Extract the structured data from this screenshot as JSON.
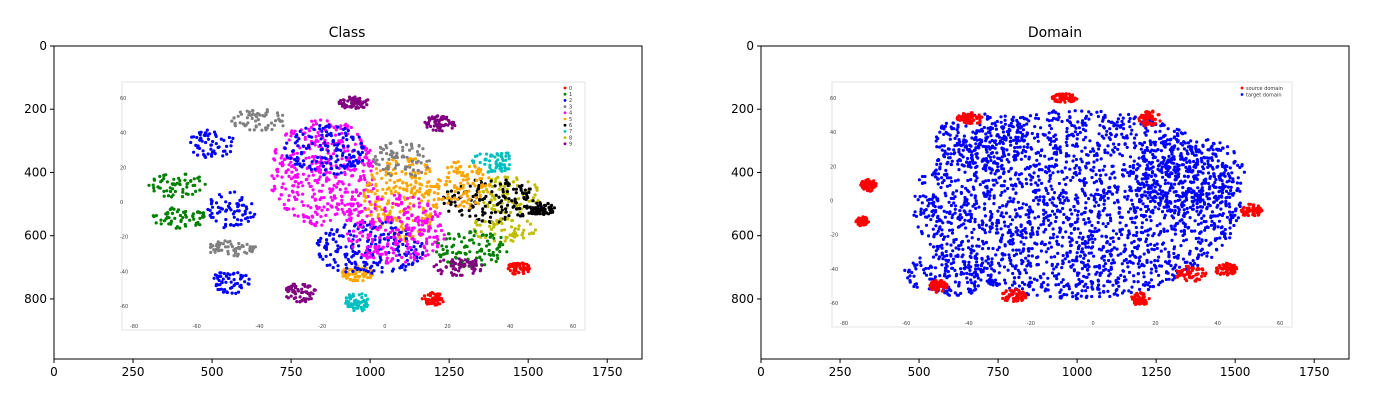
{
  "chart_data": [
    {
      "type": "scatter",
      "title": "Class",
      "xlim": [
        0,
        1860
      ],
      "ylim": [
        990,
        0
      ],
      "xticks": [
        "0",
        "250",
        "500",
        "750",
        "1000",
        "1250",
        "1500",
        "1750"
      ],
      "xtick_values": [
        0,
        250,
        500,
        750,
        1000,
        1250,
        1500,
        1750
      ],
      "yticks": [
        "0",
        "200",
        "400",
        "600",
        "800"
      ],
      "ytick_values": [
        0,
        200,
        400,
        600,
        800
      ],
      "inner_plot": {
        "xlim": [
          -80,
          80
        ],
        "ylim": [
          -60,
          60
        ],
        "xticks": [
          "-80",
          "-60",
          "-40",
          "-20",
          "0",
          "20",
          "40",
          "60"
        ],
        "yticks": [
          "60",
          "40",
          "20",
          "0",
          "-20",
          "-40",
          "-60"
        ],
        "legend_placement": "top-right",
        "legend_entries": [
          "0",
          "1",
          "2",
          "3",
          "4",
          "5",
          "6",
          "7",
          "8",
          "9"
        ],
        "legend_colors": [
          "#ff0000",
          "#008000",
          "#0000ff",
          "#808080",
          "#ff00ff",
          "#ffa500",
          "#000000",
          "#00bfbf",
          "#bfbf00",
          "#800080"
        ],
        "clusters": [
          {
            "color": "#808080",
            "cx": 650,
            "cy": 235,
            "rx": 90,
            "ry": 35
          },
          {
            "color": "#0000ff",
            "cx": 500,
            "cy": 310,
            "rx": 75,
            "ry": 45
          },
          {
            "color": "#800080",
            "cx": 1220,
            "cy": 245,
            "rx": 50,
            "ry": 25
          },
          {
            "color": "#800080",
            "cx": 950,
            "cy": 180,
            "rx": 50,
            "ry": 20
          },
          {
            "color": "#008000",
            "cx": 390,
            "cy": 440,
            "rx": 90,
            "ry": 40
          },
          {
            "color": "#008000",
            "cx": 400,
            "cy": 545,
            "rx": 90,
            "ry": 35
          },
          {
            "color": "#0000ff",
            "cx": 560,
            "cy": 520,
            "rx": 80,
            "ry": 60
          },
          {
            "color": "#808080",
            "cx": 560,
            "cy": 640,
            "rx": 80,
            "ry": 25
          },
          {
            "color": "#0000ff",
            "cx": 560,
            "cy": 745,
            "rx": 60,
            "ry": 40
          },
          {
            "color": "#ff00ff",
            "cx": 850,
            "cy": 400,
            "rx": 170,
            "ry": 170
          },
          {
            "color": "#0000ff",
            "cx": 860,
            "cy": 330,
            "rx": 130,
            "ry": 80
          },
          {
            "color": "#ffa500",
            "cx": 1100,
            "cy": 480,
            "rx": 120,
            "ry": 140
          },
          {
            "color": "#800080",
            "cx": 780,
            "cy": 780,
            "rx": 50,
            "ry": 30
          },
          {
            "color": "#00bfbf",
            "cx": 960,
            "cy": 810,
            "rx": 40,
            "ry": 30
          },
          {
            "color": "#ffa500",
            "cx": 960,
            "cy": 720,
            "rx": 50,
            "ry": 25
          },
          {
            "color": "#00bfbf",
            "cx": 1390,
            "cy": 365,
            "rx": 70,
            "ry": 35
          },
          {
            "color": "#bfbf00",
            "cx": 1440,
            "cy": 470,
            "rx": 100,
            "ry": 60
          },
          {
            "color": "#000000",
            "cx": 1380,
            "cy": 490,
            "rx": 150,
            "ry": 70
          },
          {
            "color": "#000000",
            "cx": 1540,
            "cy": 515,
            "rx": 45,
            "ry": 20
          },
          {
            "color": "#bfbf00",
            "cx": 1420,
            "cy": 580,
            "rx": 110,
            "ry": 40
          },
          {
            "color": "#ff0000",
            "cx": 1470,
            "cy": 705,
            "rx": 40,
            "ry": 20
          },
          {
            "color": "#ff0000",
            "cx": 1200,
            "cy": 800,
            "rx": 35,
            "ry": 20
          },
          {
            "color": "#ffa500",
            "cx": 1290,
            "cy": 440,
            "rx": 90,
            "ry": 80
          },
          {
            "color": "#008000",
            "cx": 1320,
            "cy": 640,
            "rx": 120,
            "ry": 60
          },
          {
            "color": "#800080",
            "cx": 1280,
            "cy": 700,
            "rx": 80,
            "ry": 30
          },
          {
            "color": "#0000ff",
            "cx": 1000,
            "cy": 640,
            "rx": 170,
            "ry": 90
          },
          {
            "color": "#808080",
            "cx": 1100,
            "cy": 360,
            "rx": 90,
            "ry": 60
          },
          {
            "color": "#ff00ff",
            "cx": 1080,
            "cy": 580,
            "rx": 160,
            "ry": 110
          }
        ]
      }
    },
    {
      "type": "scatter",
      "title": "Domain",
      "xlim": [
        0,
        1860
      ],
      "ylim": [
        990,
        0
      ],
      "xticks": [
        "0",
        "250",
        "500",
        "750",
        "1000",
        "1250",
        "1500",
        "1750"
      ],
      "xtick_values": [
        0,
        250,
        500,
        750,
        1000,
        1250,
        1500,
        1750
      ],
      "yticks": [
        "0",
        "200",
        "400",
        "600",
        "800"
      ],
      "ytick_values": [
        0,
        200,
        400,
        600,
        800
      ],
      "inner_plot": {
        "xlim": [
          -80,
          80
        ],
        "ylim": [
          -60,
          60
        ],
        "xticks": [
          "-80",
          "-60",
          "-40",
          "-20",
          "0",
          "20",
          "40",
          "60"
        ],
        "yticks": [
          "60",
          "40",
          "20",
          "0",
          "-20",
          "-40",
          "-60"
        ],
        "legend_placement": "top-right",
        "legend_entries": [
          "source domain",
          "target domain"
        ],
        "legend_colors": [
          "#ff0000",
          "#0000ff"
        ],
        "clusters": [
          {
            "color": "#0000ff",
            "cx": 1000,
            "cy": 500,
            "rx": 520,
            "ry": 300
          },
          {
            "color": "#0000ff",
            "cx": 700,
            "cy": 300,
            "rx": 150,
            "ry": 90
          },
          {
            "color": "#0000ff",
            "cx": 1350,
            "cy": 400,
            "rx": 180,
            "ry": 120
          },
          {
            "color": "#0000ff",
            "cx": 600,
            "cy": 720,
            "rx": 150,
            "ry": 70
          },
          {
            "color": "#ff0000",
            "cx": 960,
            "cy": 165,
            "rx": 40,
            "ry": 15
          },
          {
            "color": "#ff0000",
            "cx": 1230,
            "cy": 230,
            "rx": 35,
            "ry": 25
          },
          {
            "color": "#ff0000",
            "cx": 660,
            "cy": 230,
            "rx": 40,
            "ry": 20
          },
          {
            "color": "#ff0000",
            "cx": 340,
            "cy": 440,
            "rx": 25,
            "ry": 20
          },
          {
            "color": "#ff0000",
            "cx": 320,
            "cy": 555,
            "rx": 20,
            "ry": 15
          },
          {
            "color": "#ff0000",
            "cx": 1550,
            "cy": 520,
            "rx": 35,
            "ry": 20
          },
          {
            "color": "#ff0000",
            "cx": 1470,
            "cy": 705,
            "rx": 35,
            "ry": 20
          },
          {
            "color": "#ff0000",
            "cx": 1200,
            "cy": 800,
            "rx": 30,
            "ry": 20
          },
          {
            "color": "#ff0000",
            "cx": 800,
            "cy": 790,
            "rx": 40,
            "ry": 20
          },
          {
            "color": "#ff0000",
            "cx": 560,
            "cy": 760,
            "rx": 30,
            "ry": 20
          },
          {
            "color": "#ff0000",
            "cx": 1360,
            "cy": 720,
            "rx": 50,
            "ry": 25
          }
        ]
      }
    }
  ]
}
